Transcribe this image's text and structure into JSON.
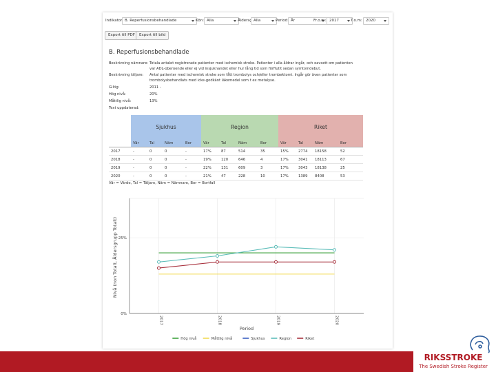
{
  "filters": [
    {
      "label": "Indikator:",
      "value": "B. Reperfusionsbehandlade"
    },
    {
      "label": "Kön:",
      "value": "Alla"
    },
    {
      "label": "Åldersgrupp:",
      "value": "Alla"
    },
    {
      "label": "Period:",
      "value": "År"
    },
    {
      "label": "Fr.o.m:",
      "value": "2017"
    },
    {
      "label": "T.o.m:",
      "value": "2020"
    }
  ],
  "buttons": [
    "Export till PDF",
    "Export till bild"
  ],
  "heading": "B. Reperfusionsbehandlade",
  "details": [
    {
      "label": "Beskrivning nämnare:",
      "text": "Totala antalet registrerade patienter med ischemisk stroke. Patienter i alla åldrar ingår, och oavsett om patienten var ADL-oberoende eller ej vid insjuknandet eller hur lång tid som förflutit sedan symtomdebut."
    },
    {
      "label": "Beskrivning täljare:",
      "text": "Antal patienter med ischemisk stroke som fått trombolys och/eller trombektomi. Ingår gör även patienter som trombolysbehandlats med icke-godkänt läkemedel som t ex metalyse."
    },
    {
      "label": "Giltig:",
      "text": "2011 -"
    },
    {
      "label": "Hög nivå:",
      "text": "20%"
    },
    {
      "label": "Måttlig nivå:",
      "text": "13%"
    },
    {
      "label": "Text uppdaterad:"
    }
  ],
  "table": {
    "groups": [
      {
        "name": "Sjukhus",
        "color": "#a9c5ea"
      },
      {
        "name": "Region",
        "color": "#b9d9b1"
      },
      {
        "name": "Riket",
        "color": "#e2b1ae"
      }
    ],
    "columns": [
      "Vär",
      "Tal",
      "Näm",
      "Bor"
    ],
    "rows": [
      {
        "year": "2017",
        "cells": [
          "-",
          "0",
          "0",
          "-",
          "17%",
          "87",
          "514",
          "35",
          "15%",
          "2774",
          "18158",
          "52"
        ]
      },
      {
        "year": "2018",
        "cells": [
          "-",
          "0",
          "0",
          "-",
          "19%",
          "120",
          "646",
          "4",
          "17%",
          "3041",
          "18113",
          "67"
        ]
      },
      {
        "year": "2019",
        "cells": [
          "-",
          "0",
          "0",
          "-",
          "22%",
          "131",
          "609",
          "3",
          "17%",
          "3043",
          "18138",
          "25"
        ]
      },
      {
        "year": "2020",
        "cells": [
          "-",
          "0",
          "0",
          "-",
          "21%",
          "47",
          "228",
          "10",
          "17%",
          "1389",
          "8408",
          "53"
        ]
      }
    ]
  },
  "table_note": "Vär = Värde, Tal = Täljare, Näm = Nämnare, Bor = Bortfall",
  "chart_data": {
    "type": "line",
    "xlabel": "Period",
    "ylabel": "Nivå (non Totalt, Åldersgrupp Totalt)",
    "categories": [
      "2017",
      "2018",
      "2019",
      "2020"
    ],
    "ylim": [
      0,
      38
    ],
    "yticks": [
      {
        "value": 0,
        "label": "0%"
      },
      {
        "value": 25,
        "label": "25%"
      }
    ],
    "grid": true,
    "legend": "bottom",
    "series": [
      {
        "name": "Hög nivå",
        "color": "#3da23d",
        "marker": false,
        "values": [
          20,
          20,
          20,
          20
        ]
      },
      {
        "name": "Måttlig nivå",
        "color": "#f2da52",
        "marker": false,
        "values": [
          13,
          13,
          13,
          13
        ]
      },
      {
        "name": "Sjukhus",
        "color": "#3a5fc2",
        "marker": true,
        "values": [
          null,
          null,
          null,
          null
        ]
      },
      {
        "name": "Region",
        "color": "#5cbdb9",
        "marker": true,
        "values": [
          17,
          19,
          22,
          21
        ]
      },
      {
        "name": "Riket",
        "color": "#a8323e",
        "marker": true,
        "values": [
          15,
          17,
          17,
          17
        ]
      }
    ]
  },
  "logo": {
    "name": "RIKSSTROKE",
    "tagline": "The Swedish Stroke Register"
  }
}
